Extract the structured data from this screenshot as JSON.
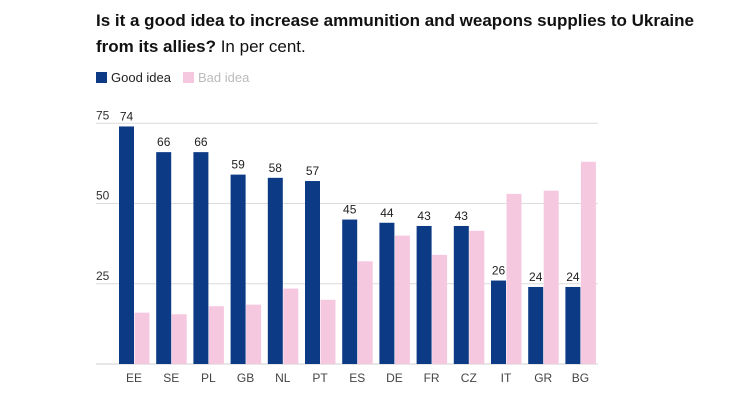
{
  "title": {
    "bold": "Is it a good idea to increase ammunition and weapons supplies to Ukraine from its allies?",
    "regular": " In per cent."
  },
  "legend": {
    "items": [
      {
        "label": "Good idea",
        "color": "#0d3a85"
      },
      {
        "label": "Bad idea",
        "color": "#f5c8df"
      }
    ]
  },
  "chart_data": {
    "type": "bar",
    "categories": [
      "EE",
      "SE",
      "PL",
      "GB",
      "NL",
      "PT",
      "ES",
      "DE",
      "FR",
      "CZ",
      "IT",
      "GR",
      "BG"
    ],
    "series": [
      {
        "name": "Good idea",
        "color": "#0d3a85",
        "values": [
          74,
          66,
          66,
          59,
          58,
          57,
          45,
          44,
          43,
          43,
          26,
          24,
          24
        ],
        "labels": [
          "74",
          "66",
          "66",
          "59",
          "58",
          "57",
          "45",
          "44",
          "43",
          "43",
          "26",
          "24",
          "24"
        ]
      },
      {
        "name": "Bad idea",
        "color": "#f5c8df",
        "values": [
          16,
          15.5,
          18,
          18.5,
          23.5,
          20,
          32,
          40,
          34,
          41.5,
          53,
          54,
          63
        ]
      }
    ],
    "yticks": [
      "25",
      "50",
      "75"
    ],
    "ytick_values": [
      25,
      50,
      75
    ],
    "ylim": [
      0,
      80
    ],
    "grid": true,
    "legend_position": "top-left"
  }
}
